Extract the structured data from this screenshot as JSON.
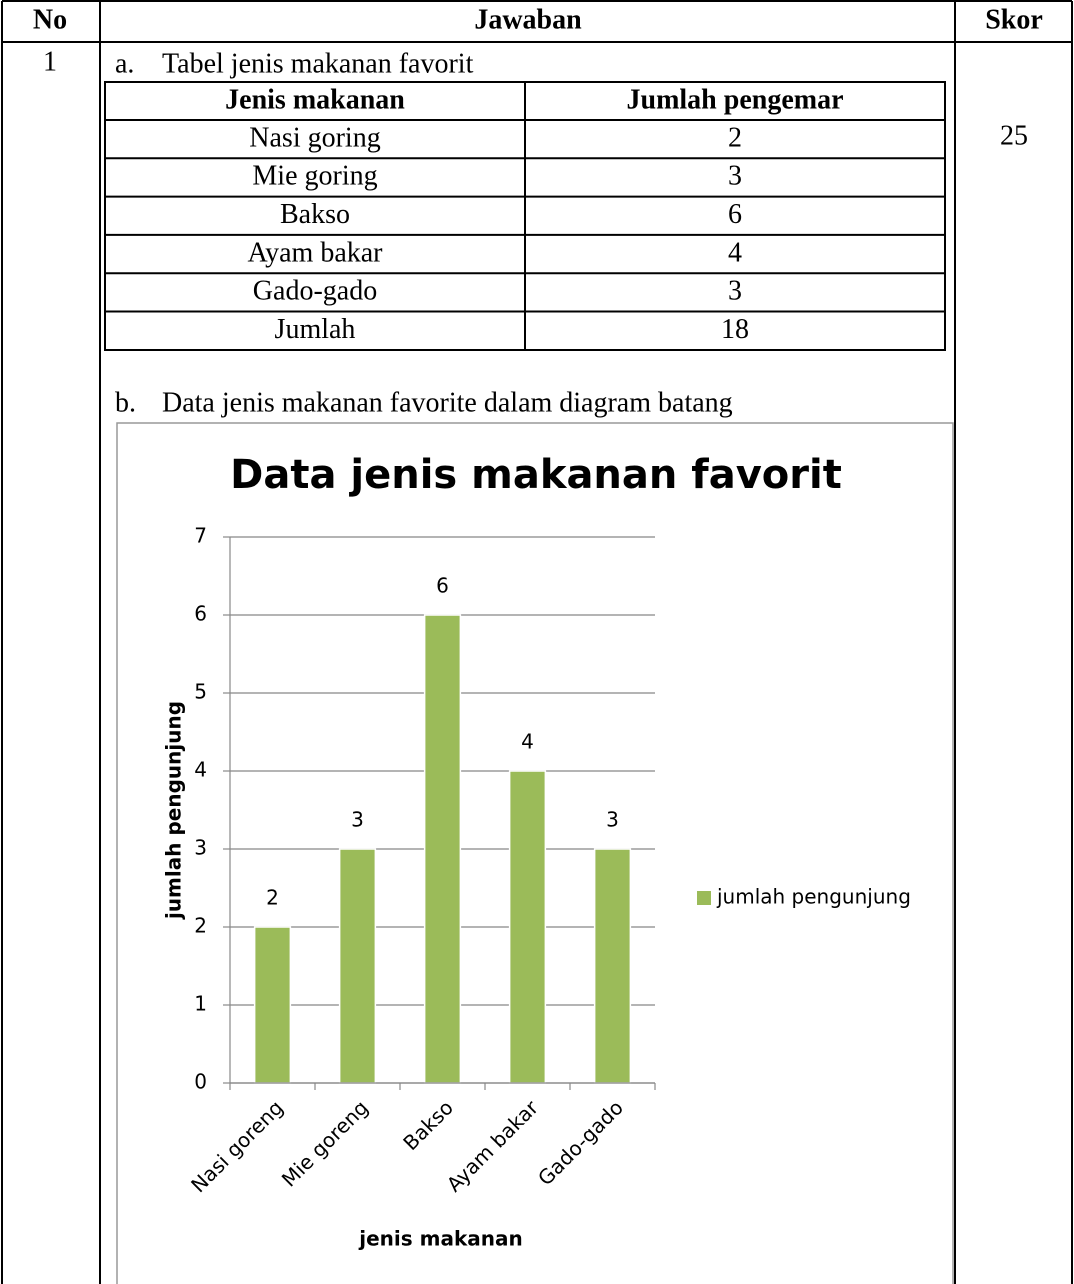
{
  "table": {
    "headers": [
      "No",
      "Jawaban",
      "Skor"
    ],
    "no": "1",
    "skor": "25"
  },
  "part_a": {
    "label": "a.",
    "text": "Tabel jenis makanan favorit",
    "table": {
      "headers": [
        "Jenis makanan",
        "Jumlah pengemar"
      ],
      "rows": [
        [
          "Nasi goring",
          2
        ],
        [
          "Mie goring",
          3
        ],
        [
          "Bakso",
          6
        ],
        [
          "Ayam bakar",
          4
        ],
        [
          "Gado-gado",
          3
        ],
        [
          "Jumlah",
          18
        ]
      ]
    }
  },
  "part_b": {
    "label": "b.",
    "text": "Data jenis makanan favorite dalam diagram batang"
  },
  "chart_data": {
    "type": "bar",
    "title": "Data jenis makanan favorit",
    "categories": [
      "Nasi goreng",
      "Mie goreng",
      "Bakso",
      "Ayam bakar",
      "Gado-gado"
    ],
    "series": [
      {
        "name": "jumlah pengunjung",
        "color": "#9bbb59",
        "values": [
          2,
          3,
          6,
          4,
          3
        ]
      }
    ],
    "xlabel": "jenis makanan",
    "ylabel": "jumlah pengunjung",
    "ylim": [
      0,
      7
    ],
    "yticks": [
      0,
      1,
      2,
      3,
      4,
      5,
      6,
      7
    ],
    "grid": true,
    "legend": "right"
  }
}
